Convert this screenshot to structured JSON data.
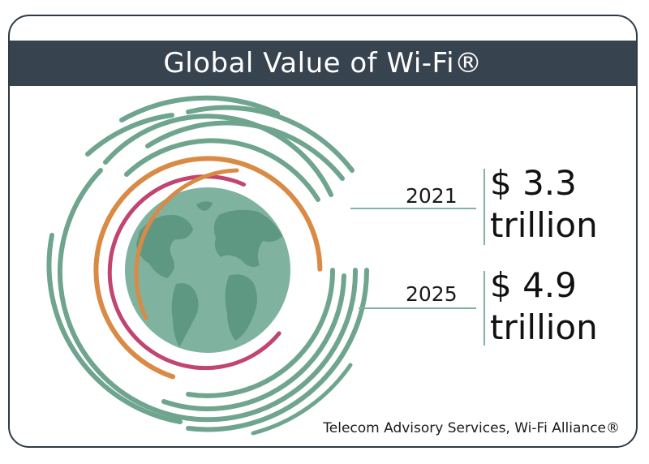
{
  "title": "Global Value of Wi-Fi®",
  "figures": [
    {
      "year": "2021",
      "amount_line1": "$ 3.3",
      "amount_line2": "trillion"
    },
    {
      "year": "2025",
      "amount_line1": "$ 4.9",
      "amount_line2": "trillion"
    }
  ],
  "source": "Telecom Advisory Services, Wi-Fi Alliance®",
  "colors": {
    "header_bg": "#37434f",
    "globe": "#7fb3a0",
    "land": "#5e9882",
    "green_arc": "#6fa58f",
    "orange_arc": "#d98a45",
    "magenta_arc": "#c2456f"
  }
}
